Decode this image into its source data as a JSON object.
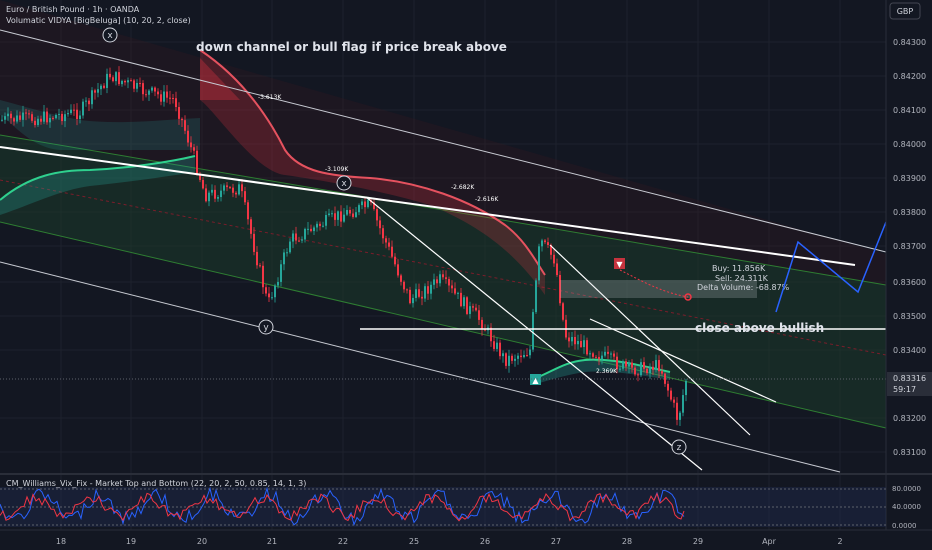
{
  "header": {
    "symbol": "Euro / British Pound · 1h · OANDA",
    "indicator": "Volumatic VIDYA [BigBeluga] (10, 20, 2, close)"
  },
  "currency_button": "GBP",
  "price_axis": {
    "ticks": [
      "0.84300",
      "0.84200",
      "0.84100",
      "0.84000",
      "0.83900",
      "0.83800",
      "0.83700",
      "0.83600",
      "0.83500",
      "0.83400",
      "0.83200",
      "0.83100"
    ],
    "last_price": "0.83316",
    "countdown": "59:17"
  },
  "annotations": {
    "title_note": "down channel or bull flag if price break above",
    "close_note": "close above bullish",
    "wave_x1": "x",
    "wave_x2": "x",
    "wave_y1": "y",
    "wave_y2": "y",
    "wave_z": "z"
  },
  "volume_labels": {
    "v1": "-3.613K",
    "v2": "-3.109K",
    "v3": "-2.682K",
    "v4": "-2.616K",
    "v5": "2.369K"
  },
  "delta_box": {
    "buy": "Buy: 11.856K",
    "sell": "Sell: 24.311K",
    "delta": "Delta Volume: -68.87%"
  },
  "oscillator": {
    "title": "CM_Williams_Vix_Fix - Market Top and Bottom (22, 20, 2, 50, 0.85, 14, 1, 3)",
    "ticks": [
      "80.0000",
      "40.0000",
      "0.0000"
    ]
  },
  "time_axis": [
    "18",
    "19",
    "20",
    "21",
    "22",
    "25",
    "26",
    "27",
    "28",
    "29",
    "Apr",
    "2"
  ],
  "colors": {
    "background": "#131722",
    "bear": "#f23645",
    "bull": "#26a69a",
    "channel_green": "#4caf50",
    "projection": "#2962ff",
    "text": "#d1d4dc"
  }
}
